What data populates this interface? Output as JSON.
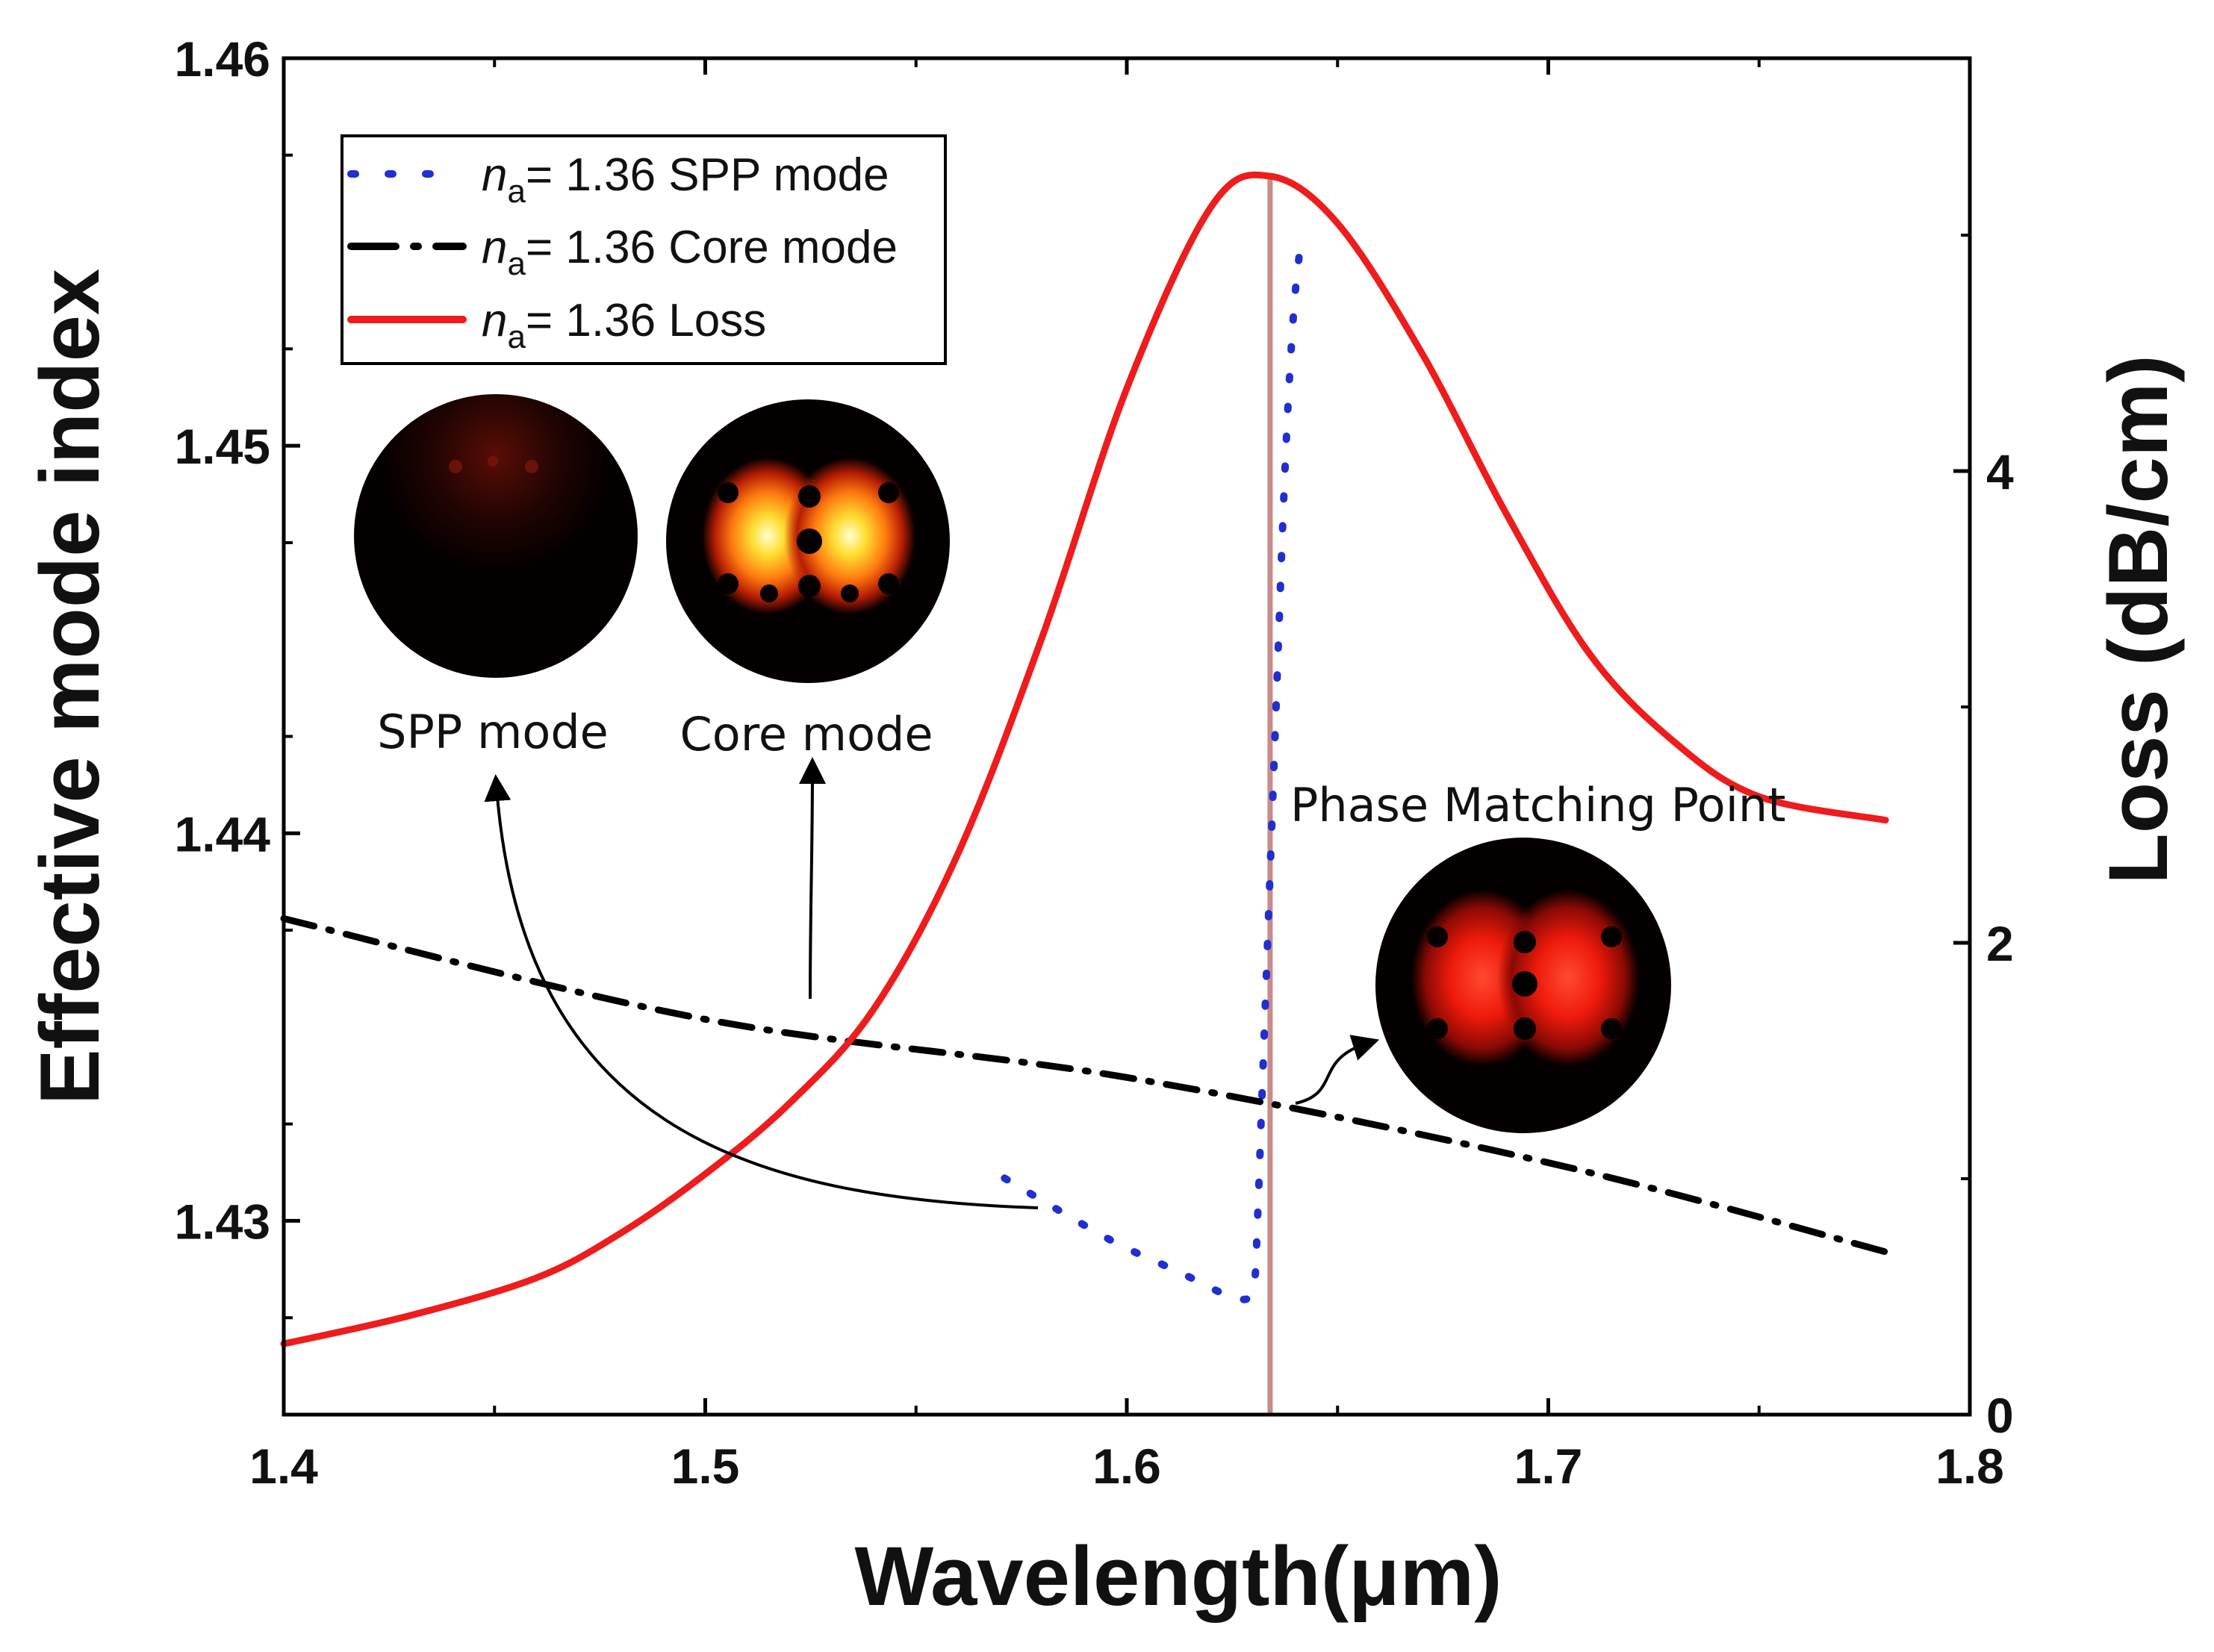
{
  "chart_data": {
    "type": "line",
    "xlabel": "Wavelength(μm)",
    "ylabel_left": "Effective mode index",
    "ylabel_right": "Loss (dB/cm)",
    "xlim": [
      1.4,
      1.8
    ],
    "ylim_left": [
      1.425,
      1.46
    ],
    "ylim_right": [
      0,
      5.75
    ],
    "x_ticks": [
      1.4,
      1.5,
      1.6,
      1.7,
      1.8
    ],
    "x_tick_labels": [
      "1.4",
      "1.5",
      "1.6",
      "1.7",
      "1.8"
    ],
    "y_left_ticks": [
      1.43,
      1.44,
      1.45,
      1.46
    ],
    "y_left_tick_labels": [
      "1.43",
      "1.44",
      "1.45",
      "1.46"
    ],
    "y_right_ticks": [
      0,
      2,
      4
    ],
    "y_right_tick_labels": [
      "0",
      "2",
      "4"
    ],
    "legend_position": "top-left",
    "series": [
      {
        "name": "= 1.36 SPP mode",
        "name_italic": "n",
        "name_sub": "a",
        "axis": "left",
        "style": "dotted",
        "color": "#1f2fd0",
        "x": [
          1.571,
          1.585,
          1.598,
          1.612,
          1.626,
          1.63,
          1.631,
          1.632,
          1.633,
          1.634,
          1.635,
          1.636,
          1.637,
          1.638,
          1.639,
          1.64,
          1.641
        ],
        "y": [
          1.4311,
          1.4302,
          1.4294,
          1.4287,
          1.428,
          1.4283,
          1.43,
          1.433,
          1.436,
          1.439,
          1.442,
          1.445,
          1.448,
          1.4505,
          1.4525,
          1.454,
          1.455
        ]
      },
      {
        "name": "= 1.36 Core mode",
        "name_italic": "n",
        "name_sub": "a",
        "axis": "left",
        "style": "dash-dot",
        "color": "#000000",
        "x": [
          1.4,
          1.5,
          1.6,
          1.7,
          1.78
        ],
        "y": [
          1.4378,
          1.4352,
          1.4337,
          1.4315,
          1.4292
        ]
      },
      {
        "name": "= 1.36 Loss",
        "name_italic": "n",
        "name_sub": "a",
        "axis": "right",
        "style": "solid",
        "color": "#ee1c1c",
        "x": [
          1.4,
          1.43,
          1.46,
          1.48,
          1.5,
          1.52,
          1.54,
          1.56,
          1.58,
          1.6,
          1.62,
          1.634,
          1.65,
          1.67,
          1.69,
          1.71,
          1.73,
          1.75,
          1.78
        ],
        "y": [
          0.3,
          0.42,
          0.58,
          0.77,
          1.02,
          1.32,
          1.72,
          2.38,
          3.3,
          4.35,
          5.12,
          5.25,
          5.05,
          4.5,
          3.82,
          3.22,
          2.85,
          2.62,
          2.52
        ]
      }
    ],
    "phase_matching_x": 1.634,
    "annotations": {
      "phase_matching": "Phase Matching Point",
      "spp_mode": "SPP mode",
      "core_mode": "Core mode"
    }
  }
}
